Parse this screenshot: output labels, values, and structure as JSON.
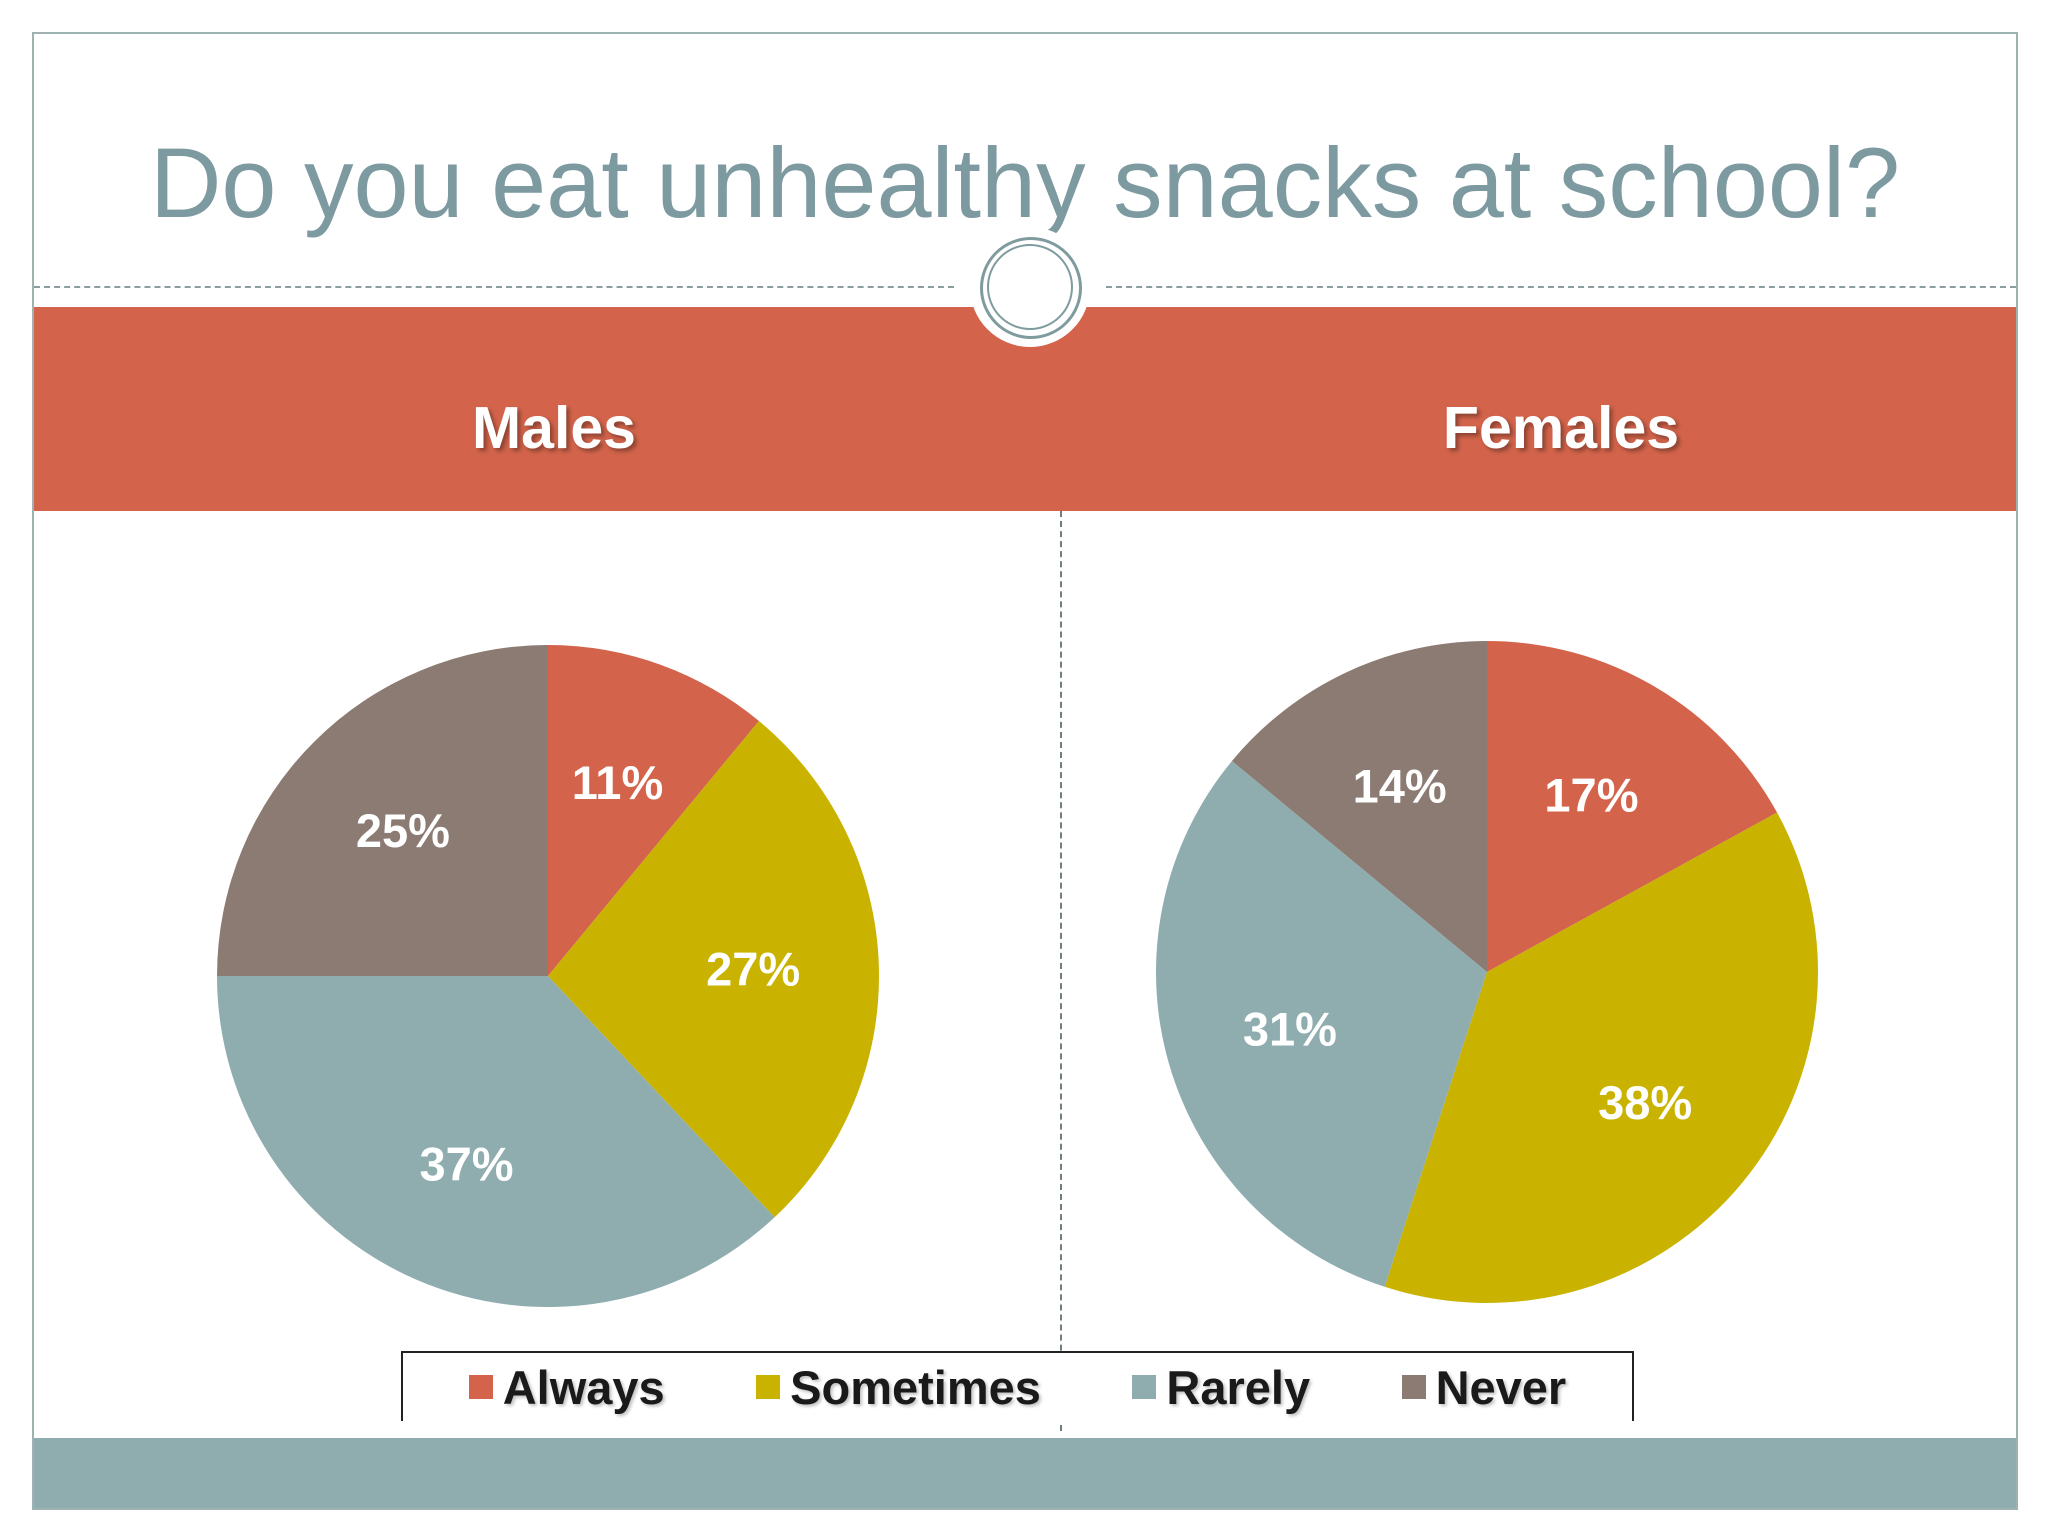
{
  "slide": {
    "title": "Do you eat unhealthy snacks at school?"
  },
  "colors": {
    "band": "#d3644b",
    "bottom_bar": "#8fadaf",
    "title": "#7c9aa0"
  },
  "legend_colors": {
    "Always": "#d3644b",
    "Sometimes": "#c9b300",
    "Rarely": "#8fadaf",
    "Never": "#8c7b72"
  },
  "chart_data": [
    {
      "type": "pie",
      "title": "Males",
      "categories": [
        "Always",
        "Sometimes",
        "Rarely",
        "Never"
      ],
      "values": [
        11,
        27,
        37,
        25
      ],
      "labels": [
        "11%",
        "27%",
        "37%",
        "25%"
      ],
      "legend": "bottom"
    },
    {
      "type": "pie",
      "title": "Females",
      "categories": [
        "Always",
        "Sometimes",
        "Rarely",
        "Never"
      ],
      "values": [
        17,
        38,
        31,
        14
      ],
      "labels": [
        "17%",
        "38%",
        "31%",
        "14%"
      ],
      "legend": "bottom"
    }
  ]
}
